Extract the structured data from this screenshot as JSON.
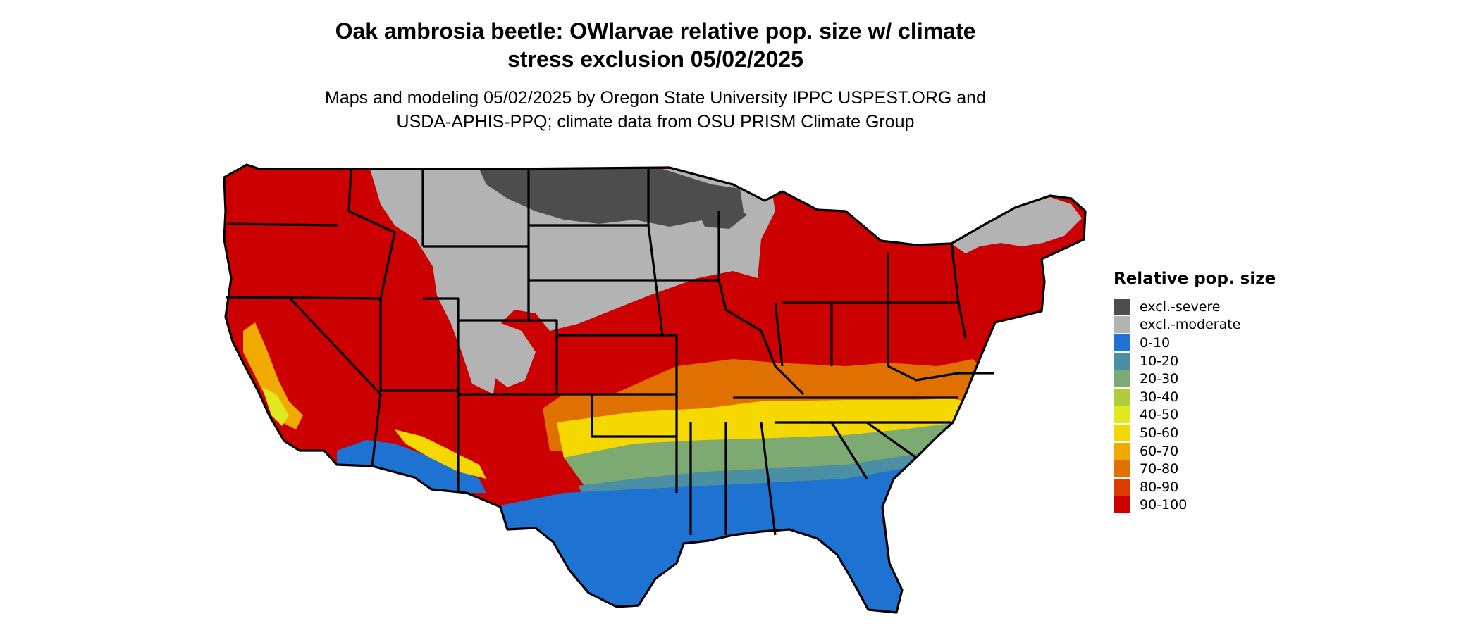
{
  "title": {
    "line1": "Oak ambrosia beetle: OWlarvae relative pop. size w/ climate",
    "line2": "stress exclusion 05/02/2025"
  },
  "subtitle": {
    "line1": "Maps and modeling 05/02/2025 by Oregon State University IPPC USPEST.ORG and",
    "line2": "USDA-APHIS-PPQ; climate data from OSU PRISM Climate Group"
  },
  "legend": {
    "title": "Relative pop. size",
    "items": [
      {
        "label": "excl.-severe",
        "color": "#4d4d4d"
      },
      {
        "label": "excl.-moderate",
        "color": "#b3b3b3"
      },
      {
        "label": "0-10",
        "color": "#1e73d2"
      },
      {
        "label": "10-20",
        "color": "#4a8fa3"
      },
      {
        "label": "20-30",
        "color": "#7daa72"
      },
      {
        "label": "30-40",
        "color": "#b0cc3c"
      },
      {
        "label": "40-50",
        "color": "#e0e81e"
      },
      {
        "label": "50-60",
        "color": "#f5d800"
      },
      {
        "label": "60-70",
        "color": "#f0aa00"
      },
      {
        "label": "70-80",
        "color": "#e07000"
      },
      {
        "label": "80-90",
        "color": "#dc3c00"
      },
      {
        "label": "90-100",
        "color": "#cc0000"
      }
    ]
  }
}
